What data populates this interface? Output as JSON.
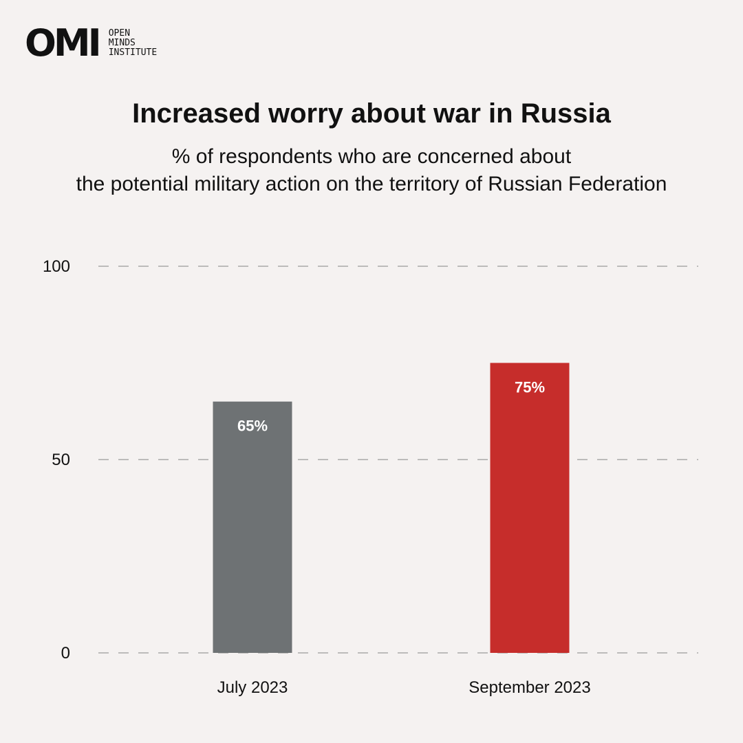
{
  "logo": {
    "mark": "OMI",
    "line1": "OPEN",
    "line2": "MINDS",
    "line3": "INSTITUTE"
  },
  "title": "Increased worry about war in Russia",
  "subtitle": {
    "line1": "% of respondents who are concerned about",
    "line2": "the potential military action on the territory of Russian Federation"
  },
  "chart_data": {
    "type": "bar",
    "categories": [
      "July 2023",
      "September 2023"
    ],
    "values": [
      65,
      75
    ],
    "data_labels": [
      "65%",
      "75%"
    ],
    "bar_colors": [
      "#6e7274",
      "#c62d2b"
    ],
    "ylim": [
      0,
      100
    ],
    "yticks": [
      0,
      50,
      100
    ],
    "grid": "dashed horizontal",
    "legend": "none"
  }
}
